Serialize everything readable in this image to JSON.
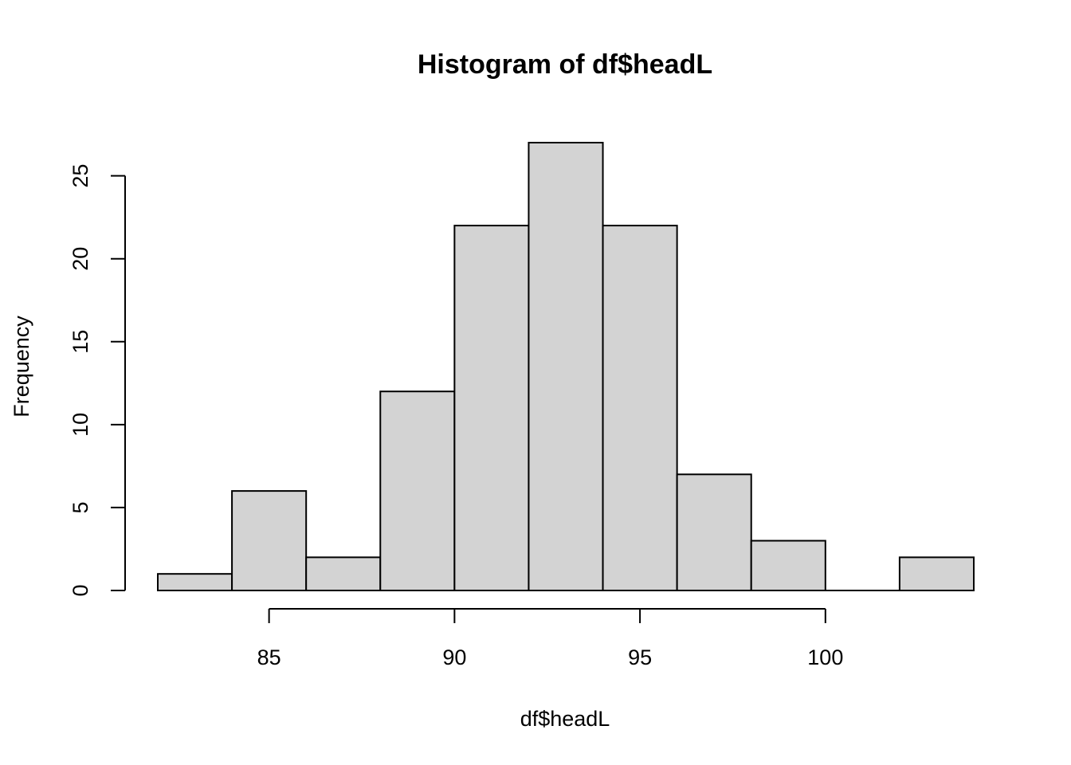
{
  "chart_data": {
    "type": "bar",
    "title": "Histogram of df$headL",
    "xlabel": "df$headL",
    "ylabel": "Frequency",
    "bin_edges": [
      82,
      84,
      86,
      88,
      90,
      92,
      94,
      96,
      98,
      100,
      102,
      104
    ],
    "counts": [
      1,
      6,
      2,
      12,
      22,
      27,
      22,
      7,
      3,
      0,
      2
    ],
    "x_ticks": [
      85,
      90,
      95,
      100
    ],
    "x_tick_labels": [
      "85",
      "90",
      "95",
      "100"
    ],
    "y_ticks": [
      0,
      5,
      10,
      15,
      20,
      25
    ],
    "y_tick_labels": [
      "0",
      "5",
      "10",
      "15",
      "20",
      "25"
    ],
    "xlim": [
      82,
      104
    ],
    "ylim": [
      0,
      27
    ],
    "bar_fill": "#d3d3d3",
    "bar_stroke": "#000000",
    "grid": false
  }
}
